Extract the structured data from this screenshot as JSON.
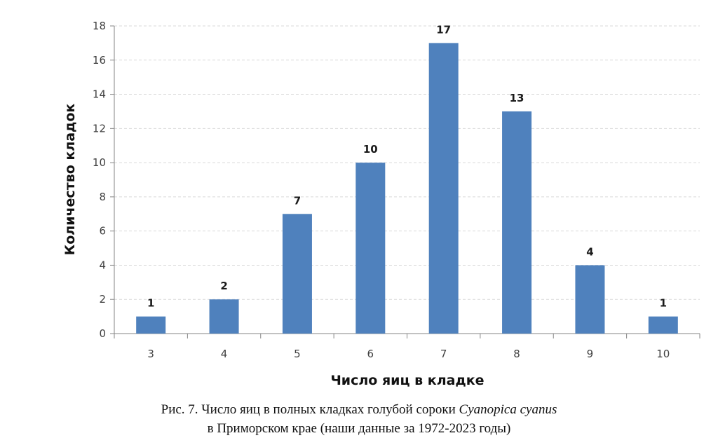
{
  "chart_data": {
    "type": "bar",
    "categories": [
      "3",
      "4",
      "5",
      "6",
      "7",
      "8",
      "9",
      "10"
    ],
    "values": [
      1,
      2,
      7,
      10,
      17,
      13,
      4,
      1
    ],
    "data_labels": [
      "1",
      "2",
      "7",
      "10",
      "17",
      "13",
      "4",
      "1"
    ],
    "xlabel": "Число яиц в кладке",
    "ylabel": "Количество кладок",
    "ylim": [
      0,
      18
    ],
    "yticks": [
      "0",
      "2",
      "4",
      "6",
      "8",
      "10",
      "12",
      "14",
      "16",
      "18"
    ],
    "grid": "horizontal-dashed",
    "legend": "none",
    "bar_color": "#4f81bd"
  },
  "caption": {
    "line1_prefix": "Рис. 7. Число яиц в полных кладках голубой сороки ",
    "line1_species": "Cyanopica cyanus",
    "line2": "в Приморском крае (наши данные за 1972-2023 годы)"
  }
}
